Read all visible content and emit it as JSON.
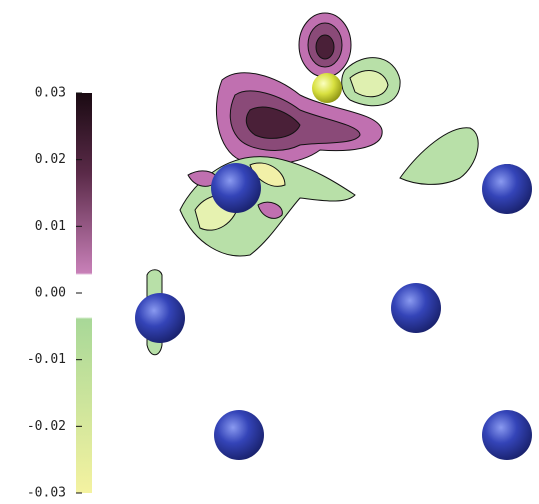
{
  "chart_data": {
    "type": "contour",
    "colorbar": {
      "clim": [
        -0.03,
        0.03
      ],
      "ticks": [
        0.03,
        0.02,
        0.01,
        {
          "value": 0,
          "label": "0.00"
        },
        -0.01,
        -0.02,
        -0.03
      ]
    }
  }
}
